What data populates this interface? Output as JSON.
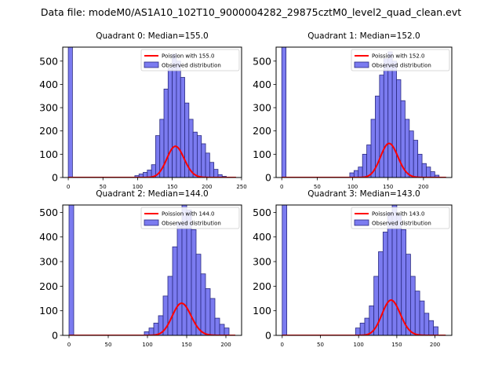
{
  "figure_title": "Data file: modeM0/AS1A10_102T10_9000004282_29875cztM0_level2_quad_clean.evt",
  "colors": {
    "bar_fill": "#7b7bf0",
    "bar_edge": "#2a2a80",
    "fit_line": "#ff0000"
  },
  "chart_data": [
    {
      "type": "bar",
      "title": "Quadrant 0: Median=155.0",
      "median": 155.0,
      "bin_width": 6,
      "xlim": [
        -8,
        250
      ],
      "ylim": [
        0,
        560
      ],
      "xticks": [
        0,
        50,
        100,
        150,
        200,
        250
      ],
      "yticks": [
        0,
        100,
        200,
        300,
        400,
        500
      ],
      "bin_starts": [
        0,
        96,
        102,
        108,
        114,
        120,
        126,
        132,
        138,
        144,
        150,
        156,
        162,
        168,
        174,
        180,
        186,
        192,
        198,
        204,
        210,
        216,
        222
      ],
      "values": [
        560,
        8,
        15,
        22,
        32,
        55,
        180,
        250,
        380,
        470,
        530,
        500,
        430,
        320,
        250,
        195,
        180,
        145,
        105,
        65,
        35,
        12,
        5
      ],
      "legend": [
        "Poission with 155.0",
        "Observed distribution"
      ]
    },
    {
      "type": "bar",
      "title": "Quadrant 1: Median=152.0",
      "median": 152.0,
      "bin_width": 6,
      "xlim": [
        -8,
        240
      ],
      "ylim": [
        0,
        560
      ],
      "xticks": [
        0,
        50,
        100,
        150,
        200
      ],
      "yticks": [
        0,
        100,
        200,
        300,
        400,
        500
      ],
      "bin_starts": [
        0,
        96,
        102,
        108,
        114,
        120,
        126,
        132,
        138,
        144,
        150,
        156,
        162,
        168,
        174,
        180,
        186,
        192,
        198,
        204,
        210,
        216
      ],
      "values": [
        560,
        20,
        30,
        45,
        100,
        140,
        250,
        350,
        440,
        510,
        540,
        500,
        420,
        330,
        250,
        200,
        160,
        100,
        60,
        45,
        25,
        10
      ],
      "legend": [
        "Poission with 152.0",
        "Observed distribution"
      ]
    },
    {
      "type": "bar",
      "title": "Quadrant 2: Median=144.0",
      "median": 144.0,
      "bin_width": 6,
      "xlim": [
        -8,
        220
      ],
      "ylim": [
        0,
        530
      ],
      "xticks": [
        0,
        50,
        100,
        150,
        200
      ],
      "yticks": [
        0,
        100,
        200,
        300,
        400,
        500
      ],
      "bin_starts": [
        0,
        96,
        102,
        108,
        114,
        120,
        126,
        132,
        138,
        144,
        150,
        156,
        162,
        168,
        174,
        180,
        186,
        192,
        198
      ],
      "values": [
        530,
        15,
        30,
        50,
        80,
        160,
        240,
        360,
        460,
        530,
        510,
        430,
        330,
        250,
        190,
        150,
        70,
        45,
        30
      ],
      "legend": [
        "Poission with 144.0",
        "Observed distribution"
      ]
    },
    {
      "type": "bar",
      "title": "Quadrant 3: Median=143.0",
      "median": 143.0,
      "bin_width": 6,
      "xlim": [
        -8,
        222
      ],
      "ylim": [
        0,
        530
      ],
      "xticks": [
        0,
        50,
        100,
        150,
        200
      ],
      "yticks": [
        0,
        100,
        200,
        300,
        400,
        500
      ],
      "bin_starts": [
        0,
        96,
        102,
        108,
        114,
        120,
        126,
        132,
        138,
        144,
        150,
        156,
        162,
        168,
        174,
        180,
        186,
        192,
        198
      ],
      "values": [
        530,
        30,
        50,
        70,
        120,
        240,
        340,
        420,
        500,
        530,
        490,
        430,
        330,
        240,
        180,
        140,
        90,
        60,
        35
      ],
      "legend": [
        "Poission with 143.0",
        "Observed distribution"
      ]
    }
  ]
}
